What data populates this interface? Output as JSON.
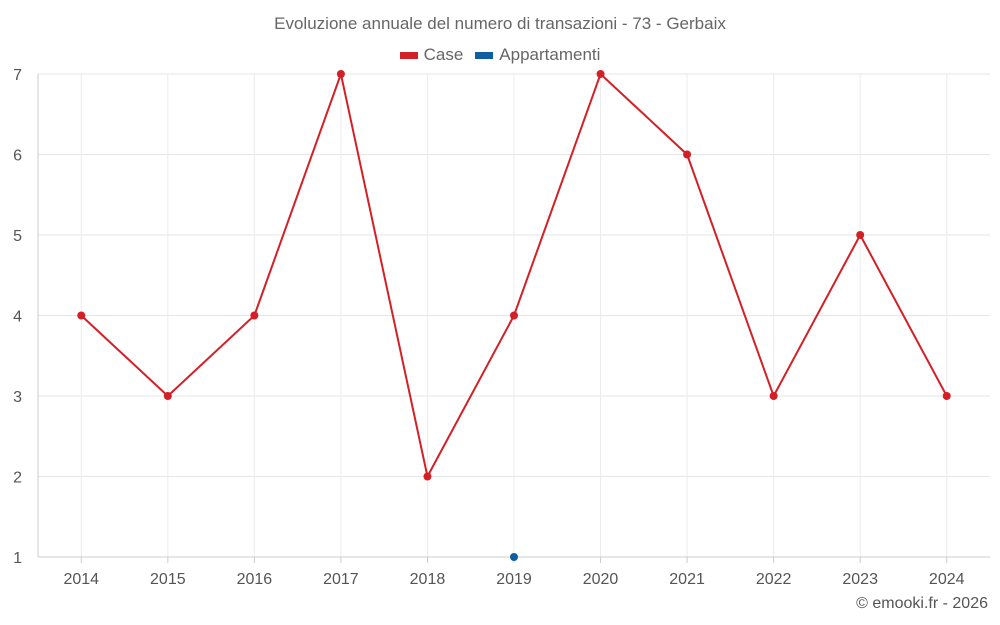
{
  "chart_data": {
    "type": "line",
    "title": "Evoluzione annuale del numero di transazioni - 73 - Gerbaix",
    "categories": [
      "2014",
      "2015",
      "2016",
      "2017",
      "2018",
      "2019",
      "2020",
      "2021",
      "2022",
      "2023",
      "2024"
    ],
    "series": [
      {
        "name": "Case",
        "color": "#d32027",
        "values": [
          4,
          3,
          4,
          7,
          2,
          4,
          7,
          6,
          3,
          5,
          3
        ]
      },
      {
        "name": "Appartamenti",
        "color": "#0f5fa0",
        "values": [
          null,
          null,
          null,
          null,
          null,
          1,
          null,
          null,
          null,
          null,
          null
        ]
      }
    ],
    "ylim": [
      1,
      7
    ],
    "yticks": [
      1,
      2,
      3,
      4,
      5,
      6,
      7
    ],
    "xlabel": "",
    "ylabel": "",
    "grid": true,
    "legend_position": "top-center"
  },
  "footer": {
    "credit": "© emooki.fr - 2026"
  }
}
